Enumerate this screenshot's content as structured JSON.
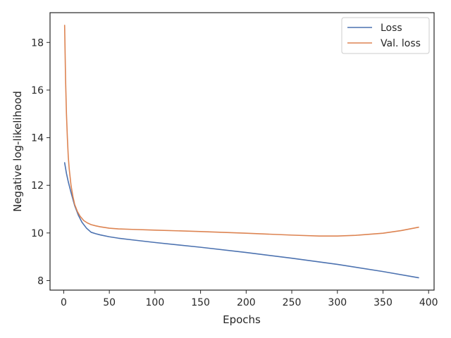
{
  "chart_data": {
    "type": "line",
    "title": "",
    "xlabel": "Epochs",
    "ylabel": "Negative log-likelihood",
    "xlim": [
      -15,
      406
    ],
    "ylim": [
      7.6,
      19.25
    ],
    "xticks": [
      0,
      50,
      100,
      150,
      200,
      250,
      300,
      350,
      400
    ],
    "yticks": [
      8,
      10,
      12,
      14,
      16,
      18
    ],
    "grid": false,
    "legend": "top-right",
    "series": [
      {
        "name": "Loss",
        "color": "#4c72b0",
        "x": [
          1,
          3,
          5,
          8,
          12,
          16,
          20,
          25,
          30,
          35,
          40,
          50,
          60,
          75,
          100,
          150,
          200,
          250,
          300,
          350,
          389
        ],
        "y": [
          12.95,
          12.5,
          12.15,
          11.7,
          11.15,
          10.75,
          10.45,
          10.2,
          10.03,
          9.97,
          9.92,
          9.84,
          9.78,
          9.71,
          9.6,
          9.4,
          9.18,
          8.94,
          8.68,
          8.38,
          8.12
        ]
      },
      {
        "name": "Val. loss",
        "color": "#dd8452",
        "x": [
          1,
          2,
          3,
          4,
          5,
          6,
          8,
          10,
          12,
          15,
          18,
          22,
          26,
          30,
          35,
          40,
          50,
          60,
          75,
          100,
          150,
          200,
          250,
          280,
          300,
          320,
          350,
          370,
          389
        ],
        "y": [
          18.72,
          16.5,
          15.0,
          14.0,
          13.2,
          12.7,
          12.0,
          11.55,
          11.2,
          10.9,
          10.7,
          10.52,
          10.42,
          10.35,
          10.3,
          10.26,
          10.2,
          10.17,
          10.15,
          10.12,
          10.06,
          9.99,
          9.91,
          9.87,
          9.87,
          9.9,
          9.99,
          10.1,
          10.24
        ]
      }
    ]
  }
}
